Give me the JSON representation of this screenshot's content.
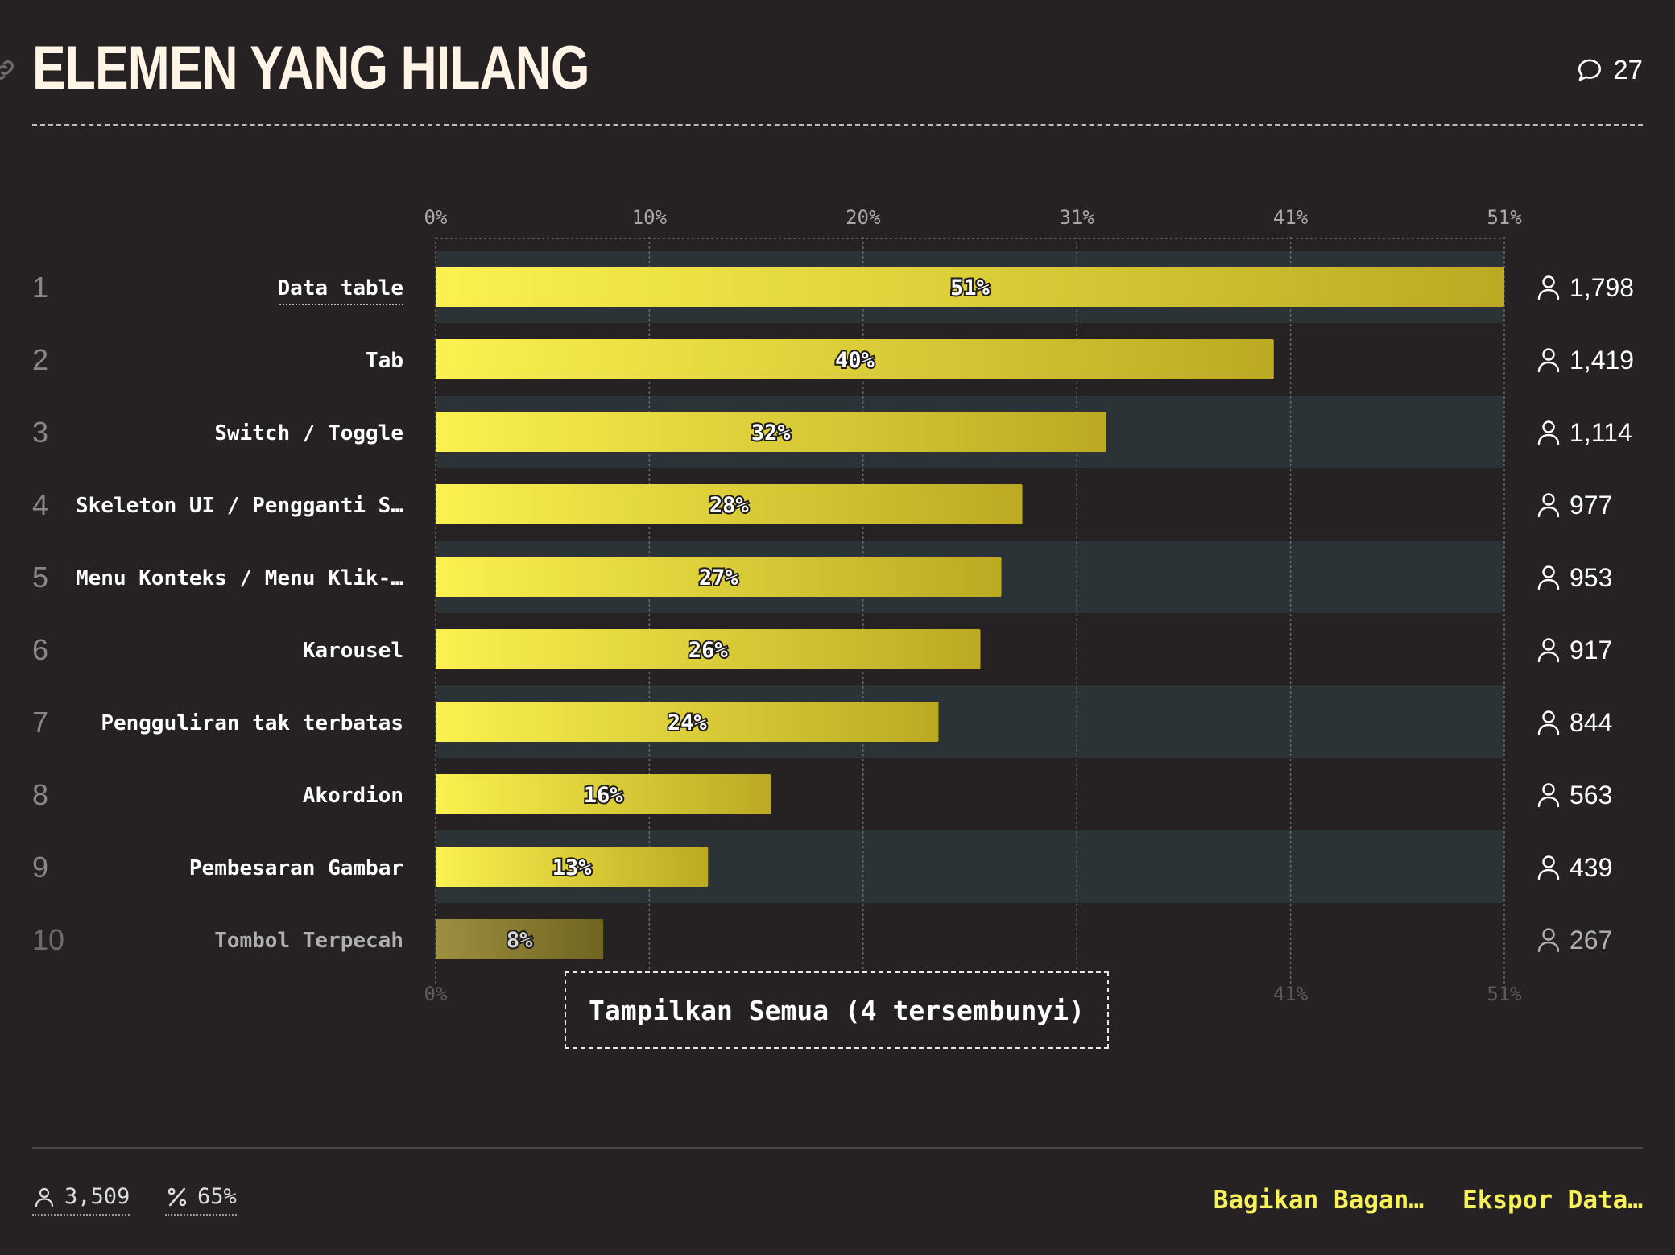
{
  "header": {
    "title": "ELEMEN YANG HILANG",
    "comment_count": "27"
  },
  "chart_data": {
    "type": "bar",
    "orientation": "horizontal",
    "title": "ELEMEN YANG HILANG",
    "xlabel": "",
    "ylabel": "",
    "xlim": [
      0,
      51
    ],
    "x_ticks": [
      "0%",
      "10%",
      "20%",
      "31%",
      "41%",
      "51%"
    ],
    "grid": true,
    "categories": [
      "Data table",
      "Tab",
      "Switch / Toggle",
      "Skeleton UI / Pengganti S…",
      "Menu Konteks / Menu Klik-…",
      "Karousel",
      "Pengguliran tak terbatas",
      "Akordion",
      "Pembesaran Gambar",
      "Tombol Terpecah"
    ],
    "ranks": [
      "1",
      "2",
      "3",
      "4",
      "5",
      "6",
      "7",
      "8",
      "9",
      "10"
    ],
    "values": [
      51,
      40,
      32,
      28,
      27,
      26,
      24,
      16,
      13,
      8
    ],
    "value_labels": [
      "51%",
      "40%",
      "32%",
      "28%",
      "27%",
      "26%",
      "24%",
      "16%",
      "13%",
      "8%"
    ],
    "counts": [
      "1,798",
      "1,419",
      "1,114",
      "977",
      "953",
      "917",
      "844",
      "563",
      "439",
      "267"
    ],
    "bar_color_start": "#fbf150",
    "bar_color_end": "#bbaa22",
    "dimmed_bar_color": "#8c7f2a"
  },
  "show_all_button": "Tampilkan Semua (4 tersembunyi)",
  "footer": {
    "respondents": "3,509",
    "percent": "65%",
    "share_label": "Bagikan Bagan…",
    "export_label": "Ekspor Data…"
  }
}
